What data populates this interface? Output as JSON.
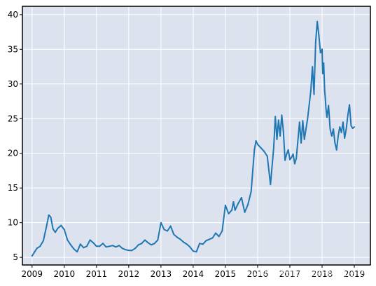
{
  "chart_data": {
    "type": "line",
    "title": "",
    "xlabel": "",
    "ylabel": "",
    "x_ticks": [
      "2009",
      "2010",
      "2011",
      "2012",
      "2013",
      "2014",
      "2015",
      "2016",
      "2017",
      "2018",
      "2019"
    ],
    "y_ticks": [
      5,
      10,
      15,
      20,
      25,
      30,
      35,
      40
    ],
    "xlim": [
      2008.7,
      2019.5
    ],
    "ylim": [
      3.9,
      41.2
    ],
    "grid": true,
    "background": "#dde2ef",
    "line_color": "#1f77b4",
    "series": [
      {
        "x": [
          2009.0,
          2009.08,
          2009.15,
          2009.25,
          2009.35,
          2009.45,
          2009.52,
          2009.58,
          2009.65,
          2009.72,
          2009.8,
          2009.9,
          2010.0,
          2010.1,
          2010.2,
          2010.3,
          2010.4,
          2010.5,
          2010.6,
          2010.7,
          2010.8,
          2010.9,
          2011.0,
          2011.1,
          2011.2,
          2011.3,
          2011.4,
          2011.5,
          2011.6,
          2011.7,
          2011.8,
          2011.9,
          2012.0,
          2012.1,
          2012.2,
          2012.3,
          2012.4,
          2012.5,
          2012.6,
          2012.7,
          2012.8,
          2012.9,
          2013.0,
          2013.1,
          2013.2,
          2013.3,
          2013.4,
          2013.5,
          2013.6,
          2013.7,
          2013.8,
          2013.9,
          2014.0,
          2014.1,
          2014.2,
          2014.3,
          2014.4,
          2014.5,
          2014.6,
          2014.7,
          2014.8,
          2014.9,
          2015.0,
          2015.1,
          2015.2,
          2015.25,
          2015.3,
          2015.4,
          2015.5,
          2015.6,
          2015.7,
          2015.8,
          2015.9,
          2015.95,
          2016.0,
          2016.1,
          2016.2,
          2016.3,
          2016.4,
          2016.5,
          2016.55,
          2016.6,
          2016.65,
          2016.7,
          2016.75,
          2016.8,
          2016.85,
          2016.9,
          2016.95,
          2017.0,
          2017.05,
          2017.1,
          2017.15,
          2017.2,
          2017.3,
          2017.35,
          2017.4,
          2017.45,
          2017.5,
          2017.55,
          2017.6,
          2017.65,
          2017.7,
          2017.75,
          2017.8,
          2017.85,
          2017.9,
          2017.95,
          2018.0,
          2018.02,
          2018.05,
          2018.08,
          2018.1,
          2018.12,
          2018.15,
          2018.2,
          2018.25,
          2018.3,
          2018.35,
          2018.4,
          2018.45,
          2018.5,
          2018.55,
          2018.6,
          2018.65,
          2018.7,
          2018.75,
          2018.8,
          2018.85,
          2018.9,
          2018.95,
          2019.0
        ],
        "y": [
          5.2,
          5.8,
          6.3,
          6.6,
          7.4,
          9.5,
          11.1,
          10.8,
          9.1,
          8.6,
          9.2,
          9.6,
          9.0,
          7.5,
          6.8,
          6.2,
          5.8,
          6.9,
          6.4,
          6.6,
          7.5,
          7.1,
          6.6,
          6.6,
          7.0,
          6.5,
          6.6,
          6.7,
          6.5,
          6.7,
          6.3,
          6.1,
          6.0,
          6.0,
          6.3,
          6.8,
          7.0,
          7.5,
          7.1,
          6.8,
          7.0,
          7.5,
          10.0,
          9.0,
          8.8,
          9.5,
          8.3,
          7.9,
          7.6,
          7.2,
          6.9,
          6.5,
          5.9,
          5.8,
          7.0,
          6.9,
          7.4,
          7.6,
          7.8,
          8.5,
          8.0,
          8.8,
          12.5,
          11.3,
          11.8,
          13.0,
          11.8,
          12.8,
          13.6,
          11.5,
          12.6,
          14.5,
          20.5,
          21.8,
          21.3,
          20.8,
          20.3,
          19.6,
          15.5,
          20.8,
          25.3,
          22.0,
          24.8,
          22.5,
          25.5,
          23.2,
          19.0,
          19.9,
          20.5,
          19.1,
          19.4,
          19.9,
          18.5,
          19.3,
          24.5,
          21.5,
          24.7,
          22.0,
          23.5,
          25.0,
          27.0,
          29.0,
          32.5,
          28.5,
          36.0,
          39.0,
          37.0,
          34.5,
          35.0,
          31.5,
          33.0,
          29.0,
          28.0,
          26.5,
          25.2,
          26.9,
          23.5,
          22.5,
          23.5,
          21.5,
          20.5,
          22.5,
          23.8,
          23.0,
          24.5,
          22.2,
          23.5,
          25.5,
          27.0,
          24.0,
          23.6,
          23.8
        ]
      }
    ],
    "watermark": "CSDN @佐佑思维-机器学习"
  }
}
